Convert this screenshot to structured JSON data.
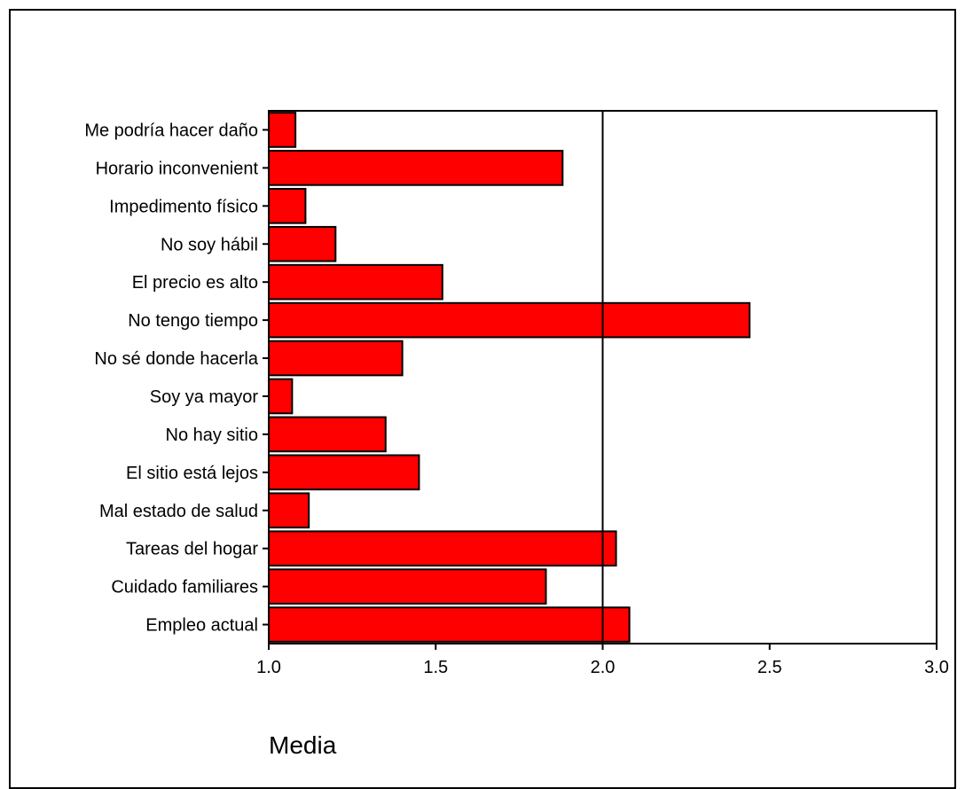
{
  "chart_data": {
    "type": "bar",
    "orientation": "horizontal",
    "categories": [
      "Me podría hacer daño",
      "Horario inconvenient",
      "Impedimento físico",
      "No soy hábil",
      "El precio es alto",
      "No tengo tiempo",
      "No sé donde hacerla",
      "Soy ya mayor",
      "No hay sitio",
      "El sitio está lejos",
      "Mal estado de salud",
      "Tareas del hogar",
      "Cuidado familiares",
      "Empleo actual"
    ],
    "values": [
      1.08,
      1.88,
      1.11,
      1.2,
      1.52,
      2.44,
      1.4,
      1.07,
      1.35,
      1.45,
      1.12,
      2.04,
      1.83,
      2.08
    ],
    "xlabel": "Media",
    "ylabel": "",
    "xlim": [
      1.0,
      3.0
    ],
    "xticks": [
      "1.0",
      "1.5",
      "2.0",
      "2.5",
      "3.0"
    ],
    "reference_line": 2.0,
    "grid": false,
    "bar_color": "#ff0000",
    "bar_edge_color": "#000000"
  }
}
